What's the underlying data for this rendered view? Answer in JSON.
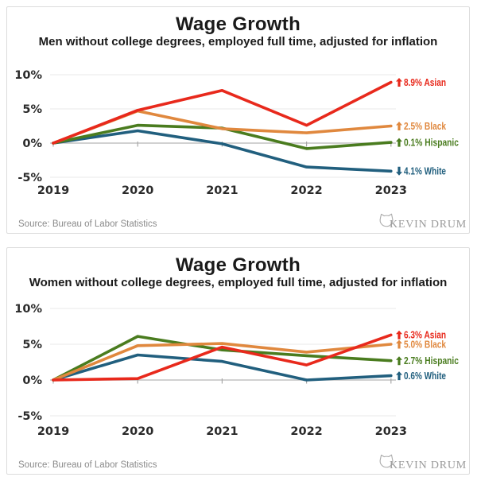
{
  "source_label": "Source: Bureau of Labor Statistics",
  "logo_text": "KEVIN DRUM",
  "colors": {
    "asian": "#e8291c",
    "black": "#e0883e",
    "hispanic": "#4a7c1f",
    "white": "#215f7e",
    "grid": "#e9e9e9",
    "zero_axis": "#c2c2c2",
    "tick": "#a8a8a8"
  },
  "chart_data": [
    {
      "type": "line",
      "title": "Wage Growth",
      "subtitle": "Men without college degrees, employed full time, adjusted for inflation",
      "x": [
        "2019",
        "2020",
        "2021",
        "2022",
        "2023"
      ],
      "yticks": [
        10,
        5,
        0,
        -5
      ],
      "ytick_labels": [
        "10%",
        "5%",
        "0%",
        "-5%"
      ],
      "ylim": [
        -6.5,
        11.5
      ],
      "grid": true,
      "legend_position": "right of line ends",
      "series": [
        {
          "name": "White",
          "color": "#215f7e",
          "values": [
            0,
            1.8,
            -0.1,
            -3.5,
            -4.1
          ],
          "end_label": "4.1% White",
          "direction": "down"
        },
        {
          "name": "Hispanic",
          "color": "#4a7c1f",
          "values": [
            0,
            2.6,
            2.2,
            -0.8,
            0.1
          ],
          "end_label": "0.1% Hispanic",
          "direction": "up"
        },
        {
          "name": "Black",
          "color": "#e0883e",
          "values": [
            0,
            4.7,
            2.1,
            1.5,
            2.5
          ],
          "end_label": "2.5% Black",
          "direction": "up"
        },
        {
          "name": "Asian",
          "color": "#e8291c",
          "values": [
            0,
            4.8,
            7.7,
            2.6,
            8.9
          ],
          "end_label": "8.9% Asian",
          "direction": "up"
        }
      ],
      "source": "Source: Bureau of Labor Statistics",
      "logo": "KEVIN DRUM"
    },
    {
      "type": "line",
      "title": "Wage Growth",
      "subtitle": "Women without college degrees, employed full time, adjusted for inflation",
      "x": [
        "2019",
        "2020",
        "2021",
        "2022",
        "2023"
      ],
      "yticks": [
        10,
        5,
        0,
        -5
      ],
      "ytick_labels": [
        "10%",
        "5%",
        "0%",
        "-5%"
      ],
      "ylim": [
        -6.5,
        11.5
      ],
      "grid": true,
      "legend_position": "right of line ends",
      "series": [
        {
          "name": "White",
          "color": "#215f7e",
          "values": [
            0,
            3.5,
            2.6,
            0.0,
            0.6
          ],
          "end_label": "0.6% White",
          "direction": "up"
        },
        {
          "name": "Hispanic",
          "color": "#4a7c1f",
          "values": [
            0,
            6.1,
            4.2,
            3.4,
            2.7
          ],
          "end_label": "2.7% Hispanic",
          "direction": "up"
        },
        {
          "name": "Black",
          "color": "#e0883e",
          "values": [
            0,
            4.8,
            5.1,
            3.9,
            5.0
          ],
          "end_label": "5.0% Black",
          "direction": "up"
        },
        {
          "name": "Asian",
          "color": "#e8291c",
          "values": [
            0,
            0.2,
            4.6,
            2.1,
            6.3
          ],
          "end_label": "6.3% Asian",
          "direction": "up"
        }
      ],
      "source": "Source: Bureau of Labor Statistics",
      "logo": "KEVIN DRUM"
    }
  ]
}
